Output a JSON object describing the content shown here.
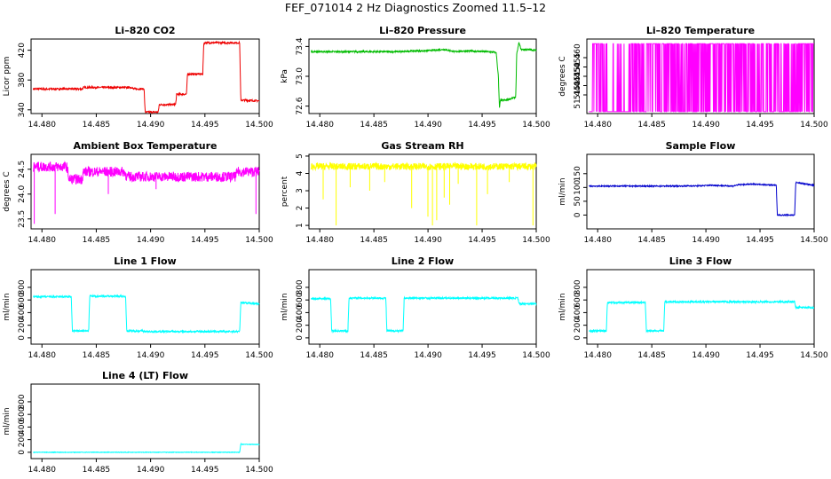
{
  "figure": {
    "title": "FEF_071014  2 Hz Diagnostics Zoomed 11.5–12"
  },
  "chart_data": [
    {
      "type": "line",
      "title": "Li–820 CO2",
      "ylabel": "Licor ppm",
      "color": "#ee0000",
      "xlim": [
        14.479,
        14.5
      ],
      "xticks": [
        14.48,
        14.485,
        14.49,
        14.495,
        14.5
      ],
      "xtick_labels": [
        "14.480",
        "14.485",
        "14.490",
        "14.495",
        "14.500"
      ],
      "ylim": [
        335,
        435
      ],
      "yticks": [
        340,
        380,
        420
      ],
      "ytick_labels": [
        "340",
        "380",
        "420"
      ],
      "series": [
        {
          "x": [
            14.4792,
            14.4837,
            14.4838,
            14.4883,
            14.4884,
            14.4894,
            14.4895,
            14.4907,
            14.4908,
            14.4923,
            14.4924,
            14.4933,
            14.4934,
            14.4948,
            14.4949,
            14.4982,
            14.4983,
            14.5
          ],
          "y": [
            368,
            368,
            370,
            370,
            368,
            368,
            337,
            337,
            347,
            347,
            361,
            361,
            388,
            388,
            430,
            430,
            353,
            352
          ],
          "noise": 1.2
        }
      ]
    },
    {
      "type": "line",
      "title": "Li–820 Pressure",
      "ylabel": "kPa",
      "color": "#00bb00",
      "xlim": [
        14.479,
        14.5
      ],
      "xticks": [
        14.48,
        14.485,
        14.49,
        14.495,
        14.5
      ],
      "xtick_labels": [
        "14.480",
        "14.485",
        "14.490",
        "14.495",
        "14.500"
      ],
      "ylim": [
        72.5,
        73.5
      ],
      "yticks": [
        72.6,
        73.0,
        73.4
      ],
      "ytick_labels": [
        "72.6",
        "73.0",
        "73.4"
      ],
      "series": [
        {
          "x": [
            14.4792,
            14.4875,
            14.4885,
            14.4895,
            14.4905,
            14.4915,
            14.4925,
            14.4935,
            14.4955,
            14.4963,
            14.4965,
            14.4966,
            14.4967,
            14.4972,
            14.4981,
            14.4982,
            14.4984,
            14.4986,
            14.499,
            14.5
          ],
          "y": [
            73.33,
            73.33,
            73.34,
            73.34,
            73.35,
            73.36,
            73.33,
            73.34,
            73.33,
            73.32,
            73.0,
            72.58,
            72.68,
            72.68,
            72.72,
            73.3,
            73.45,
            73.36,
            73.36,
            73.35
          ],
          "noise": 0.01
        }
      ]
    },
    {
      "type": "line",
      "title": "Li–820 Temperature",
      "ylabel": "degrees C",
      "color": "#ff00ff",
      "xlim": [
        14.479,
        14.5
      ],
      "xticks": [
        14.48,
        14.485,
        14.49,
        14.495,
        14.5
      ],
      "xtick_labels": [
        "14.480",
        "14.485",
        "14.490",
        "14.495",
        "14.500"
      ],
      "ylim": [
        51.43,
        51.47
      ],
      "yticks": [
        51.44,
        51.445,
        51.45,
        51.455,
        51.46
      ],
      "ytick_labels": [
        "51.440",
        "51.445",
        "51.450",
        "51.455",
        "51.460"
      ],
      "series": [
        {
          "mode": "binary",
          "low": 51.431,
          "high": 51.4675,
          "x_start": 14.4792,
          "x_end": 14.5,
          "low_only_until": 14.4795,
          "gap_low": [
            [
              14.4805,
              14.483
            ]
          ]
        }
      ]
    },
    {
      "type": "line",
      "title": "Ambient Box Temperature",
      "ylabel": "degrees C",
      "color": "#ff00ff",
      "xlim": [
        14.479,
        14.5
      ],
      "xticks": [
        14.48,
        14.485,
        14.49,
        14.495,
        14.5
      ],
      "xtick_labels": [
        "14.480",
        "14.485",
        "14.490",
        "14.495",
        "14.500"
      ],
      "ylim": [
        23.3,
        24.8
      ],
      "yticks": [
        23.5,
        24.0,
        24.5
      ],
      "ytick_labels": [
        "23.5",
        "24.0",
        "24.5"
      ],
      "series": [
        {
          "x": [
            14.4792,
            14.4823,
            14.4825,
            14.4837,
            14.4838,
            14.4876,
            14.4878,
            14.4978,
            14.498,
            14.5
          ],
          "y": [
            24.55,
            24.55,
            24.3,
            24.3,
            24.45,
            24.45,
            24.35,
            24.35,
            24.45,
            24.45
          ],
          "noise": 0.1,
          "spikes": [
            [
              14.4793,
              23.4
            ],
            [
              14.4812,
              23.6
            ],
            [
              14.4861,
              24.0
            ],
            [
              14.4905,
              24.1
            ],
            [
              14.4997,
              23.6
            ]
          ]
        }
      ]
    },
    {
      "type": "line",
      "title": "Gas Stream RH",
      "ylabel": "percent",
      "color": "#ffff00",
      "xlim": [
        14.479,
        14.5
      ],
      "xticks": [
        14.48,
        14.485,
        14.49,
        14.495,
        14.5
      ],
      "xtick_labels": [
        "14.480",
        "14.485",
        "14.490",
        "14.495",
        "14.500"
      ],
      "ylim": [
        0.8,
        5.1
      ],
      "yticks": [
        1,
        2,
        3,
        4,
        5
      ],
      "ytick_labels": [
        "1",
        "2",
        "3",
        "4",
        "5"
      ],
      "series": [
        {
          "x": [
            14.4792,
            14.5
          ],
          "y": [
            4.4,
            4.4
          ],
          "noise": 0.2,
          "spikes": [
            [
              14.4803,
              2.5
            ],
            [
              14.4815,
              1.0
            ],
            [
              14.4828,
              3.2
            ],
            [
              14.4846,
              3.0
            ],
            [
              14.486,
              3.5
            ],
            [
              14.4885,
              2.0
            ],
            [
              14.49,
              1.5
            ],
            [
              14.4904,
              1.0
            ],
            [
              14.4908,
              1.3
            ],
            [
              14.4915,
              2.6
            ],
            [
              14.492,
              2.2
            ],
            [
              14.4928,
              3.4
            ],
            [
              14.4945,
              1.0
            ],
            [
              14.4955,
              2.8
            ],
            [
              14.4975,
              3.5
            ],
            [
              14.4997,
              1.0
            ]
          ]
        }
      ]
    },
    {
      "type": "line",
      "title": "Sample Flow",
      "ylabel": "ml/min",
      "color": "#0000cc",
      "xlim": [
        14.479,
        14.5
      ],
      "xticks": [
        14.48,
        14.485,
        14.49,
        14.495,
        14.5
      ],
      "xtick_labels": [
        "14.480",
        "14.485",
        "14.490",
        "14.495",
        "14.500"
      ],
      "ylim": [
        -50,
        220
      ],
      "yticks": [
        0,
        50,
        100,
        150
      ],
      "ytick_labels": [
        "0",
        "50",
        "100",
        "150"
      ],
      "series": [
        {
          "x": [
            14.4792,
            14.4875,
            14.4895,
            14.4905,
            14.4925,
            14.493,
            14.4945,
            14.4965,
            14.4966,
            14.4982,
            14.4983,
            14.5
          ],
          "y": [
            105,
            105,
            106,
            108,
            105,
            110,
            112,
            108,
            0,
            0,
            118,
            108
          ],
          "noise": 2
        }
      ]
    },
    {
      "type": "line",
      "title": "Line 1 Flow",
      "ylabel": "ml/min",
      "color": "#00ffff",
      "xlim": [
        14.479,
        14.5
      ],
      "xticks": [
        14.48,
        14.485,
        14.49,
        14.495,
        14.5
      ],
      "xtick_labels": [
        "14.480",
        "14.485",
        "14.490",
        "14.495",
        "14.500"
      ],
      "ylim": [
        -100,
        1080
      ],
      "yticks": [
        0,
        200,
        400,
        600,
        800
      ],
      "ytick_labels": [
        "0",
        "200",
        "400",
        "600",
        "800"
      ],
      "series": [
        {
          "x": [
            14.4792,
            14.4827,
            14.4828,
            14.4843,
            14.4844,
            14.4877,
            14.4878,
            14.4893,
            14.4894,
            14.4982,
            14.4983,
            14.5
          ],
          "y": [
            650,
            650,
            110,
            110,
            660,
            660,
            110,
            110,
            100,
            100,
            560,
            540
          ],
          "noise": 14
        }
      ]
    },
    {
      "type": "line",
      "title": "Line 2 Flow",
      "ylabel": "ml/min",
      "color": "#00ffff",
      "xlim": [
        14.479,
        14.5
      ],
      "xticks": [
        14.48,
        14.485,
        14.49,
        14.495,
        14.5
      ],
      "xtick_labels": [
        "14.480",
        "14.485",
        "14.490",
        "14.495",
        "14.500"
      ],
      "ylim": [
        -100,
        1080
      ],
      "yticks": [
        0,
        200,
        400,
        600,
        800
      ],
      "ytick_labels": [
        "0",
        "200",
        "400",
        "600",
        "800"
      ],
      "series": [
        {
          "x": [
            14.4792,
            14.481,
            14.4811,
            14.4826,
            14.4827,
            14.4861,
            14.4862,
            14.4877,
            14.4878,
            14.4983,
            14.4984,
            14.5
          ],
          "y": [
            620,
            620,
            110,
            110,
            630,
            630,
            110,
            110,
            630,
            630,
            540,
            540
          ],
          "noise": 14
        }
      ]
    },
    {
      "type": "line",
      "title": "Line 3 Flow",
      "ylabel": "ml/min",
      "color": "#00ffff",
      "xlim": [
        14.479,
        14.5
      ],
      "xticks": [
        14.48,
        14.485,
        14.49,
        14.495,
        14.5
      ],
      "xtick_labels": [
        "14.480",
        "14.485",
        "14.490",
        "14.495",
        "14.500"
      ],
      "ylim": [
        -100,
        1080
      ],
      "yticks": [
        0,
        200,
        400,
        600,
        800
      ],
      "ytick_labels": [
        "0",
        "200",
        "400",
        "600",
        "800"
      ],
      "series": [
        {
          "x": [
            14.4792,
            14.4808,
            14.4809,
            14.4844,
            14.4845,
            14.4861,
            14.4862,
            14.4982,
            14.4983,
            14.5
          ],
          "y": [
            110,
            110,
            560,
            560,
            110,
            110,
            570,
            570,
            480,
            480
          ],
          "noise": 14
        }
      ]
    },
    {
      "type": "line",
      "title": "Line 4 (LT) Flow",
      "ylabel": "ml/min",
      "color": "#00ffff",
      "xlim": [
        14.479,
        14.5
      ],
      "xticks": [
        14.48,
        14.485,
        14.49,
        14.495,
        14.5
      ],
      "xtick_labels": [
        "14.480",
        "14.485",
        "14.490",
        "14.495",
        "14.500"
      ],
      "ylim": [
        -100,
        1080
      ],
      "yticks": [
        0,
        200,
        400,
        600,
        800
      ],
      "ytick_labels": [
        "0",
        "200",
        "400",
        "600",
        "800"
      ],
      "series": [
        {
          "x": [
            14.4792,
            14.4982,
            14.4983,
            14.4984,
            14.5
          ],
          "y": [
            0,
            0,
            130,
            125,
            125
          ],
          "noise": 4
        }
      ]
    }
  ]
}
